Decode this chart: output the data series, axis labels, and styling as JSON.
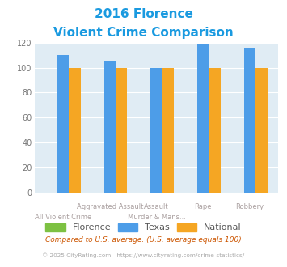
{
  "title_line1": "2016 Florence",
  "title_line2": "Violent Crime Comparison",
  "title_color": "#1a9ae0",
  "categories": [
    "All Violent Crime",
    "Aggravated Assault",
    "Murder & Mans...",
    "Rape",
    "Robbery"
  ],
  "xlabels_row1": [
    "",
    "Aggravated Assault",
    "Assault",
    "Rape",
    "Robbery"
  ],
  "xlabels_row2": [
    "All Violent Crime",
    "",
    "Murder & Mans...",
    "",
    ""
  ],
  "florence_values": [
    0,
    0,
    0,
    0,
    0
  ],
  "texas_values": [
    110,
    105,
    100,
    119,
    116
  ],
  "national_values": [
    100,
    100,
    100,
    100,
    100
  ],
  "florence_color": "#7dc142",
  "texas_color": "#4d9de8",
  "national_color": "#f5a623",
  "plot_bg_color": "#e0ecf4",
  "ylim": [
    0,
    120
  ],
  "yticks": [
    0,
    20,
    40,
    60,
    80,
    100,
    120
  ],
  "xlabel_color": "#aaa0a0",
  "footnote1": "Compared to U.S. average. (U.S. average equals 100)",
  "footnote2": "© 2025 CityRating.com - https://www.cityrating.com/crime-statistics/",
  "footnote1_color": "#cc5500",
  "footnote2_color": "#aaaaaa",
  "legend_labels": [
    "Florence",
    "Texas",
    "National"
  ],
  "legend_color": "#555555",
  "bar_width": 0.25
}
